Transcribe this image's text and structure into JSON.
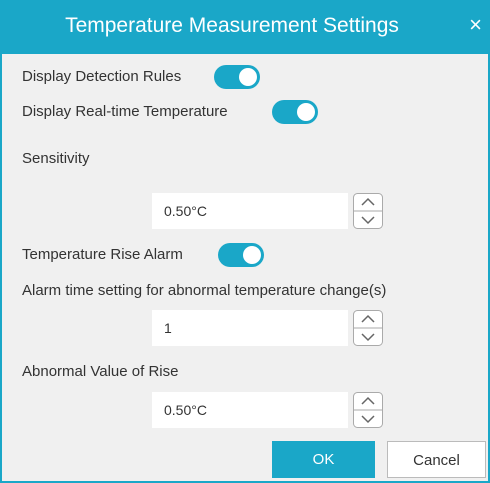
{
  "dialog": {
    "title": "Temperature Measurement Settings",
    "close": "×"
  },
  "display_detection_rules": {
    "label": "Display Detection Rules",
    "on": true
  },
  "display_realtime_temperature": {
    "label": "Display Real-time Temperature",
    "on": true
  },
  "sensitivity": {
    "label": "Sensitivity",
    "value": "0.50°C"
  },
  "temperature_rise_alarm": {
    "label": "Temperature Rise Alarm",
    "on": true
  },
  "alarm_time": {
    "label": "Alarm time setting for abnormal temperature change(s)",
    "value": "1"
  },
  "abnormal_value_of_rise": {
    "label": "Abnormal Value of Rise",
    "value": "0.50°C"
  },
  "buttons": {
    "ok": "OK",
    "cancel": "Cancel"
  }
}
